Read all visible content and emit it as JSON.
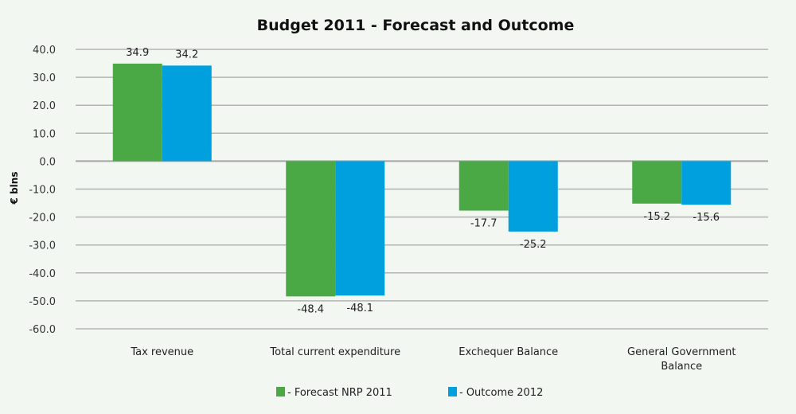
{
  "chart_data": {
    "type": "bar",
    "title": "Budget 2011 - Forecast and Outcome",
    "xlabel": "",
    "ylabel": "€ blns",
    "ylim": [
      -60,
      40
    ],
    "yticks": [
      40,
      30,
      20,
      10,
      0,
      -10,
      -20,
      -30,
      -40,
      -50,
      -60
    ],
    "ytick_labels": [
      "40.0",
      "30.0",
      "20.0",
      "10.0",
      "0.0",
      "-10.0",
      "-20.0",
      "-30.0",
      "-40.0",
      "-50.0",
      "-60.0"
    ],
    "grid": true,
    "legend_position": "bottom",
    "categories": [
      [
        "Tax revenue"
      ],
      [
        "Total current expenditure"
      ],
      [
        "Exchequer Balance"
      ],
      [
        "General Government",
        "Balance"
      ]
    ],
    "series": [
      {
        "name": "- Forecast NRP 2011",
        "color": "#4aa845",
        "values": [
          34.9,
          -48.4,
          -17.7,
          -15.2
        ],
        "labels": [
          "34.9",
          "-48.4",
          "-17.7",
          "-15.2"
        ]
      },
      {
        "name": "- Outcome 2012",
        "color": "#009fde",
        "values": [
          34.2,
          -48.1,
          -25.2,
          -15.6
        ],
        "labels": [
          "34.2",
          "-48.1",
          "-25.2",
          "-15.6"
        ]
      }
    ]
  }
}
